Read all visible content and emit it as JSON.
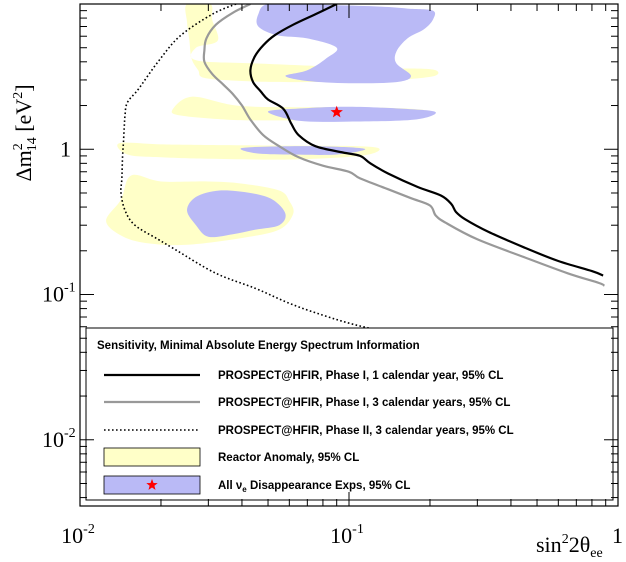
{
  "chart_data": {
    "type": "line",
    "xscale": "log",
    "yscale": "log",
    "xlim": [
      0.01,
      1
    ],
    "ylim": [
      0.0035,
      10
    ],
    "xlabel": {
      "base": "sin",
      "sup1": "2",
      "mid": "2θ",
      "sub": "ee"
    },
    "ylabel": {
      "pre": "Δm",
      "sup": "2",
      "sub": "14",
      "unit": "[eV",
      "unit_sup": "2",
      "unit_end": "]"
    },
    "x_ticks": [
      {
        "value": 0.01,
        "base": "10",
        "exp": "-2"
      },
      {
        "value": 0.1,
        "base": "10",
        "exp": "-1"
      },
      {
        "value": 1,
        "base": "1",
        "exp": ""
      }
    ],
    "y_ticks": [
      {
        "value": 0.01,
        "base": "10",
        "exp": "-2"
      },
      {
        "value": 0.1,
        "base": "10",
        "exp": "-1"
      },
      {
        "value": 1,
        "base": "1",
        "exp": ""
      }
    ],
    "legend_title": "Sensitivity, Minimal Absolute Energy Spectrum Information",
    "series": [
      {
        "name": "PROSPECT@HFIR, Phase I, 1 calendar year, 95% CL",
        "color": "#000000",
        "style": "solid",
        "points": [
          [
            0.09,
            10
          ],
          [
            0.075,
            8.5
          ],
          [
            0.062,
            7.2
          ],
          [
            0.053,
            6.1
          ],
          [
            0.048,
            5.2
          ],
          [
            0.0445,
            4.3
          ],
          [
            0.043,
            3.5
          ],
          [
            0.044,
            2.9
          ],
          [
            0.047,
            2.5
          ],
          [
            0.05,
            2.2
          ],
          [
            0.057,
            1.9
          ],
          [
            0.061,
            1.5
          ],
          [
            0.065,
            1.25
          ],
          [
            0.075,
            1.05
          ],
          [
            0.095,
            0.95
          ],
          [
            0.11,
            0.9
          ],
          [
            0.12,
            0.8
          ],
          [
            0.14,
            0.68
          ],
          [
            0.18,
            0.55
          ],
          [
            0.22,
            0.48
          ],
          [
            0.24,
            0.42
          ],
          [
            0.25,
            0.37
          ],
          [
            0.27,
            0.33
          ],
          [
            0.33,
            0.27
          ],
          [
            0.45,
            0.21
          ],
          [
            0.6,
            0.17
          ],
          [
            0.8,
            0.145
          ],
          [
            0.88,
            0.135
          ]
        ]
      },
      {
        "name": "PROSPECT@HFIR, Phase I, 3 calendar years, 95% CL",
        "color": "#999999",
        "style": "solid",
        "points": [
          [
            0.043,
            10
          ],
          [
            0.037,
            8.7
          ],
          [
            0.032,
            7.2
          ],
          [
            0.0295,
            5.8
          ],
          [
            0.029,
            4.8
          ],
          [
            0.029,
            4.0
          ],
          [
            0.031,
            3.3
          ],
          [
            0.034,
            2.8
          ],
          [
            0.037,
            2.4
          ],
          [
            0.04,
            2.0
          ],
          [
            0.043,
            1.6
          ],
          [
            0.048,
            1.25
          ],
          [
            0.055,
            1.05
          ],
          [
            0.065,
            0.88
          ],
          [
            0.08,
            0.77
          ],
          [
            0.1,
            0.7
          ],
          [
            0.11,
            0.63
          ],
          [
            0.14,
            0.53
          ],
          [
            0.17,
            0.46
          ],
          [
            0.2,
            0.41
          ],
          [
            0.21,
            0.35
          ],
          [
            0.23,
            0.31
          ],
          [
            0.3,
            0.24
          ],
          [
            0.45,
            0.18
          ],
          [
            0.65,
            0.14
          ],
          [
            0.85,
            0.12
          ],
          [
            0.89,
            0.115
          ]
        ]
      },
      {
        "name": "PROSPECT@HFIR, Phase II, 3 calendar years, 95% CL",
        "color": "#000000",
        "style": "dotted",
        "points": [
          [
            0.038,
            10
          ],
          [
            0.031,
            8.5
          ],
          [
            0.0235,
            6.0
          ],
          [
            0.0195,
            4.0
          ],
          [
            0.0165,
            2.6
          ],
          [
            0.015,
            2.1
          ],
          [
            0.0147,
            1.7
          ],
          [
            0.0146,
            1.4
          ],
          [
            0.0145,
            1.1
          ],
          [
            0.0144,
            0.9
          ],
          [
            0.0143,
            0.62
          ],
          [
            0.0142,
            0.5
          ],
          [
            0.0147,
            0.38
          ],
          [
            0.016,
            0.3
          ],
          [
            0.0195,
            0.24
          ],
          [
            0.023,
            0.2
          ],
          [
            0.032,
            0.14
          ],
          [
            0.045,
            0.11
          ],
          [
            0.06,
            0.087
          ],
          [
            0.08,
            0.072
          ],
          [
            0.105,
            0.062
          ],
          [
            0.14,
            0.055
          ],
          [
            0.18,
            0.05
          ]
        ]
      }
    ],
    "regions": [
      {
        "name": "Reactor Anomaly, 95% CL",
        "color": "#ffffc8",
        "polygons": [
          [
            [
              0.025,
              10
            ],
            [
              0.0305,
              10
            ],
            [
              0.031,
              7.8
            ],
            [
              0.0325,
              5.6
            ],
            [
              0.027,
              5.0
            ],
            [
              0.027,
              4.1
            ],
            [
              0.045,
              3.9
            ],
            [
              0.085,
              3.7
            ],
            [
              0.11,
              3.5
            ],
            [
              0.165,
              3.6
            ],
            [
              0.21,
              3.5
            ],
            [
              0.2,
              3.15
            ],
            [
              0.12,
              2.95
            ],
            [
              0.06,
              2.9
            ],
            [
              0.04,
              2.95
            ],
            [
              0.029,
              3.1
            ],
            [
              0.0275,
              3.5
            ],
            [
              0.026,
              4.2
            ],
            [
              0.0255,
              5.6
            ],
            [
              0.025,
              7.5
            ]
          ],
          [
            [
              0.026,
              2.3
            ],
            [
              0.038,
              2.0
            ],
            [
              0.06,
              1.95
            ],
            [
              0.1,
              1.95
            ],
            [
              0.17,
              1.9
            ],
            [
              0.205,
              1.78
            ],
            [
              0.17,
              1.6
            ],
            [
              0.1,
              1.58
            ],
            [
              0.05,
              1.58
            ],
            [
              0.035,
              1.6
            ],
            [
              0.024,
              1.7
            ],
            [
              0.022,
              1.85
            ]
          ],
          [
            [
              0.014,
              1.1
            ],
            [
              0.02,
              1.08
            ],
            [
              0.03,
              1.07
            ],
            [
              0.06,
              1.06
            ],
            [
              0.11,
              1.05
            ],
            [
              0.13,
              1.0
            ],
            [
              0.11,
              0.9
            ],
            [
              0.06,
              0.85
            ],
            [
              0.03,
              0.86
            ],
            [
              0.02,
              0.88
            ],
            [
              0.015,
              0.92
            ]
          ],
          [
            [
              0.0155,
              0.66
            ],
            [
              0.02,
              0.6
            ],
            [
              0.03,
              0.6
            ],
            [
              0.04,
              0.58
            ],
            [
              0.055,
              0.52
            ],
            [
              0.06,
              0.44
            ],
            [
              0.062,
              0.36
            ],
            [
              0.055,
              0.28
            ],
            [
              0.04,
              0.245
            ],
            [
              0.025,
              0.22
            ],
            [
              0.018,
              0.225
            ],
            [
              0.0145,
              0.25
            ],
            [
              0.0125,
              0.32
            ],
            [
              0.0142,
              0.45
            ]
          ]
        ]
      },
      {
        "name": "All νe Disappearance Exps, 95% CL",
        "color": "#babaf6",
        "polygons": [
          [
            [
              0.05,
              10
            ],
            [
              0.07,
              10
            ],
            [
              0.09,
              9.8
            ],
            [
              0.13,
              9.6
            ],
            [
              0.165,
              9.3
            ],
            [
              0.205,
              9.0
            ],
            [
              0.205,
              7.8
            ],
            [
              0.19,
              6.7
            ],
            [
              0.165,
              5.8
            ],
            [
              0.15,
              4.7
            ],
            [
              0.15,
              3.9
            ],
            [
              0.17,
              3.2
            ],
            [
              0.15,
              2.9
            ],
            [
              0.1,
              2.85
            ],
            [
              0.07,
              2.95
            ],
            [
              0.058,
              3.2
            ],
            [
              0.07,
              3.5
            ],
            [
              0.082,
              4.2
            ],
            [
              0.09,
              5.0
            ],
            [
              0.07,
              5.8
            ],
            [
              0.054,
              6.1
            ],
            [
              0.046,
              7.0
            ],
            [
              0.046,
              8.5
            ]
          ],
          [
            [
              0.05,
              1.82
            ],
            [
              0.07,
              1.92
            ],
            [
              0.1,
              1.96
            ],
            [
              0.16,
              1.9
            ],
            [
              0.21,
              1.8
            ],
            [
              0.175,
              1.6
            ],
            [
              0.1,
              1.55
            ],
            [
              0.065,
              1.57
            ]
          ],
          [
            [
              0.04,
              1.02
            ],
            [
              0.06,
              1.05
            ],
            [
              0.09,
              1.04
            ],
            [
              0.115,
              1.0
            ],
            [
              0.09,
              0.92
            ],
            [
              0.06,
              0.92
            ],
            [
              0.045,
              0.94
            ]
          ],
          [
            [
              0.025,
              0.38
            ],
            [
              0.027,
              0.47
            ],
            [
              0.033,
              0.52
            ],
            [
              0.043,
              0.5
            ],
            [
              0.052,
              0.45
            ],
            [
              0.058,
              0.36
            ],
            [
              0.055,
              0.3
            ],
            [
              0.045,
              0.28
            ],
            [
              0.037,
              0.26
            ],
            [
              0.03,
              0.25
            ],
            [
              0.027,
              0.3
            ]
          ]
        ]
      }
    ],
    "best_fit": {
      "label": "All νe Disappearance Exps, 95% CL",
      "x": 0.09,
      "y": 1.8,
      "color": "#ff0000",
      "marker": "star"
    },
    "legend": {
      "position": "bottom-right",
      "entries": [
        {
          "label": "PROSPECT@HFIR, Phase I, 1 calendar year, 95% CL",
          "kind": "line",
          "color": "#000000",
          "style": "solid"
        },
        {
          "label": "PROSPECT@HFIR, Phase I, 3 calendar years, 95% CL",
          "kind": "line",
          "color": "#999999",
          "style": "solid"
        },
        {
          "label": "PROSPECT@HFIR, Phase II, 3 calendar years, 95% CL",
          "kind": "line",
          "color": "#000000",
          "style": "dotted"
        },
        {
          "label": "Reactor Anomaly, 95% CL",
          "kind": "fill",
          "color": "#ffffc8"
        },
        {
          "label_pre": "All ",
          "label_nu": "ν",
          "label_nu_sub": "e",
          "label_post": " Disappearance Exps, 95% CL",
          "kind": "fill-star",
          "color": "#babaf6",
          "star_color": "#ff0000"
        }
      ]
    }
  }
}
